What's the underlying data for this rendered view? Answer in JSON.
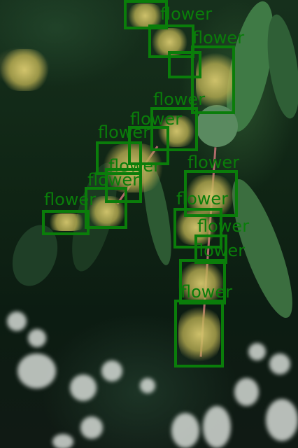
{
  "image": {
    "subject": "mango tree flower panicles with leaves",
    "detections": [
      {
        "label": "flower"
      },
      {
        "label": "flower"
      },
      {
        "label": "flower"
      },
      {
        "label": "flower"
      },
      {
        "label": "flower"
      },
      {
        "label": "flower"
      },
      {
        "label": "flower"
      },
      {
        "label": "flower"
      },
      {
        "label": "flower"
      },
      {
        "label": "flower"
      },
      {
        "label": "flower"
      },
      {
        "label": "flower"
      },
      {
        "label": "flower"
      },
      {
        "label": "flower"
      },
      {
        "label": "flower"
      },
      {
        "label": "flower"
      }
    ],
    "box_color": "#0a7d0a"
  }
}
